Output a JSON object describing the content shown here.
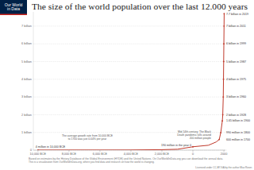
{
  "chart_data": {
    "type": "line",
    "title": "The size of the world population over the last 12.000 years",
    "logo": [
      "Our World",
      "in Data"
    ],
    "x": [
      -10000,
      -8000,
      -6000,
      -4000,
      -2000,
      -1000,
      0,
      1000,
      1500,
      1700,
      1800,
      1900,
      1928,
      1960,
      1975,
      1987,
      1999,
      2011,
      2019
    ],
    "series": [
      {
        "name": "World population",
        "color": "#c0392b",
        "values": [
          0.004,
          0.005,
          0.005,
          0.007,
          0.027,
          0.05,
          0.19,
          0.275,
          0.46,
          0.6,
          0.99,
          1.65,
          2,
          3,
          4,
          5,
          6,
          7,
          7.7
        ],
        "value_labels": [
          "4 million in 10,000 BCE",
          null,
          null,
          null,
          null,
          null,
          "190 million in the year 0",
          null,
          null,
          "600 million in 1700",
          "990 million in 1800",
          "1.65 billion in 1900",
          "2 billion in 1928",
          "3 billion in 1960",
          "4 billion in 1975",
          "5 billion in 1987",
          "6 billion in 1999",
          "7 billion in 2011",
          "7.7 billion in 2019"
        ]
      }
    ],
    "xlim": [
      -10300,
      2100
    ],
    "xticks": [
      {
        "value": -10000,
        "label": "10,000 BCE"
      },
      {
        "value": -8000,
        "label": "8,000 BCE"
      },
      {
        "value": -6000,
        "label": "6,000 BCE"
      },
      {
        "value": -4000,
        "label": "4,000 BCE"
      },
      {
        "value": -2000,
        "label": "2,000 BCE"
      },
      0,
      2000
    ],
    "ylim": [
      0,
      7.8
    ],
    "yticks": [
      0,
      {
        "value": 1,
        "label": "1 billion"
      },
      {
        "value": 2,
        "label": "2 billion"
      },
      {
        "value": 3,
        "label": "3 billion"
      },
      {
        "value": 4,
        "label": "4 billion"
      },
      {
        "value": 5,
        "label": "5 billion"
      },
      {
        "value": 6,
        "label": "6 billion"
      },
      {
        "value": 7,
        "label": "7 billion"
      }
    ],
    "grid": true,
    "annotations": [
      [
        "The average growth rate from 10,000 BCE",
        "to 1700 was just 0.04% per year"
      ],
      [
        "Mid 14th century: The Black",
        "Death pandemic kills around",
        "200 million people"
      ]
    ],
    "footer": [
      "Based on estimates by the History Database of the Global Environment (HYDE) and the United Nations. On OurWorldInData.org you can download the annual data.",
      "This is a visualization from OurWorldInData.org, where you find data and research on how the world is changing.",
      "Licensed under CC-BY-SA by the author Max Roser."
    ]
  }
}
